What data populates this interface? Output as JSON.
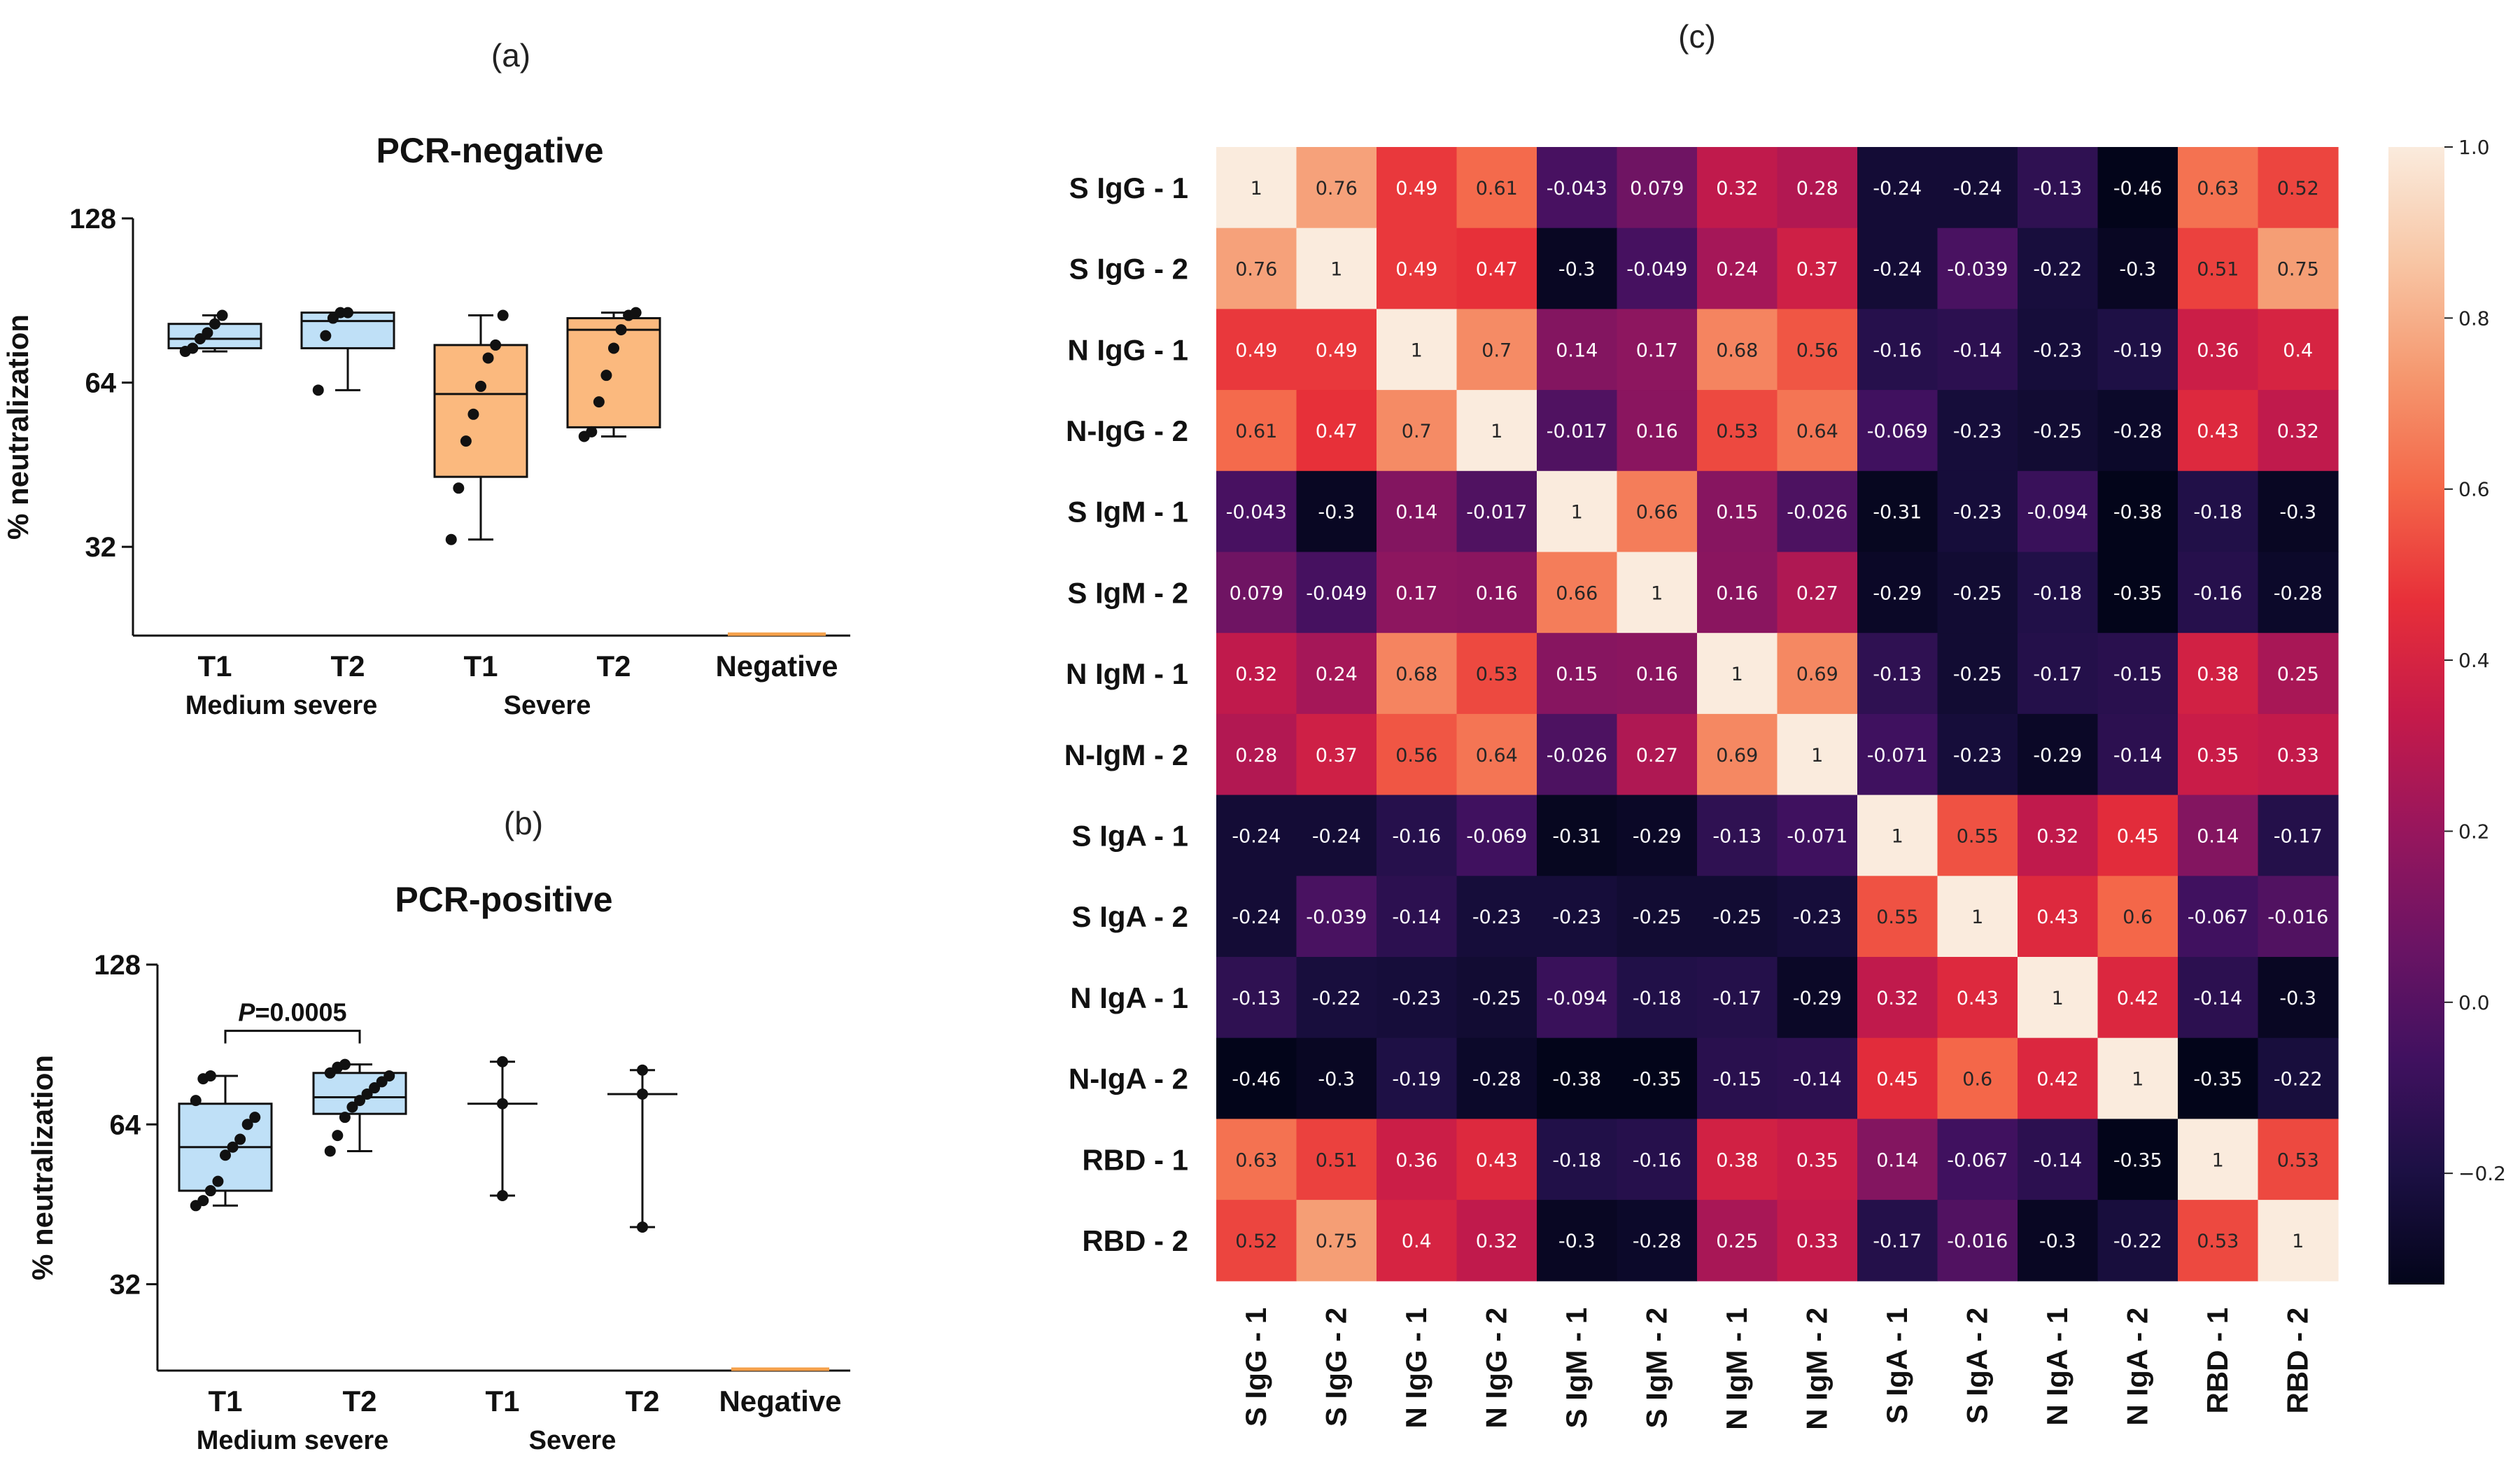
{
  "chart_data": [
    {
      "type": "box",
      "panel": "(a)",
      "title": "PCR-negative",
      "ylabel": "% neutralization",
      "yscale": "log2",
      "ylim": [
        22,
        128
      ],
      "yticks": [
        32,
        64,
        128
      ],
      "ytick_labels": [
        "32",
        "64",
        "128"
      ],
      "categories": [
        "T1",
        "T2",
        "T1",
        "T2",
        "Negative"
      ],
      "groups": [
        {
          "name": "Medium severe",
          "span": [
            0,
            1
          ]
        },
        {
          "name": "Severe",
          "span": [
            2,
            3
          ]
        }
      ],
      "colors": [
        "#bfe0f7",
        "#bfe0f7",
        "#fbb97e",
        "#fbb97e",
        "#f5a04a"
      ],
      "boxes": [
        {
          "whisker_low": 73,
          "q1": 74,
          "median": 77,
          "q3": 82,
          "whisker_high": 85,
          "points": [
            73,
            74,
            77,
            79,
            82,
            85
          ]
        },
        {
          "whisker_low": 62,
          "q1": 74,
          "median": 83,
          "q3": 86,
          "whisker_high": 86,
          "points": [
            62,
            78,
            84,
            86,
            86
          ]
        },
        {
          "whisker_low": 33,
          "q1": 43,
          "median": 61,
          "q3": 75,
          "whisker_high": 85,
          "points": [
            33,
            41,
            50,
            56,
            63,
            71,
            75,
            85
          ]
        },
        {
          "whisker_low": 51,
          "q1": 53,
          "median": 80,
          "q3": 84,
          "whisker_high": 86,
          "points": [
            51,
            52,
            59,
            66,
            74,
            80,
            85,
            86
          ]
        },
        {
          "whisker_low": 22,
          "q1": 22,
          "median": 22,
          "q3": 22,
          "whisker_high": 22,
          "points": []
        }
      ]
    },
    {
      "type": "box",
      "panel": "(b)",
      "title": "PCR-positive",
      "ylabel": "% neutralization",
      "yscale": "log2",
      "ylim": [
        22,
        128
      ],
      "yticks": [
        32,
        64,
        128
      ],
      "ytick_labels": [
        "32",
        "64",
        "128"
      ],
      "categories": [
        "T1",
        "T2",
        "T1",
        "T2",
        "Negative"
      ],
      "groups": [
        {
          "name": "Medium severe",
          "span": [
            0,
            1
          ]
        },
        {
          "name": "Severe",
          "span": [
            2,
            3
          ]
        }
      ],
      "colors": [
        "#bfe0f7",
        "#bfe0f7",
        "#ffffff",
        "#ffffff",
        "#f5a04a"
      ],
      "annotation": {
        "label_italic": "P",
        "label_rest": "=0.0005",
        "between": [
          0,
          1
        ]
      },
      "boxes": [
        {
          "whisker_low": 45,
          "q1": 48,
          "median": 58,
          "q3": 70,
          "whisker_high": 79,
          "points": [
            45,
            46,
            48,
            50,
            56,
            58,
            60,
            64,
            66,
            71,
            78,
            79
          ]
        },
        {
          "whisker_low": 57,
          "q1": 67,
          "median": 72,
          "q3": 80,
          "whisker_high": 83,
          "points": [
            57,
            61,
            66,
            69,
            71,
            73,
            75,
            77,
            79,
            80,
            82,
            83
          ]
        },
        {
          "whisker_low": 47,
          "q1": null,
          "median": 70,
          "q3": null,
          "whisker_high": 84,
          "points": [
            47,
            70,
            84
          ]
        },
        {
          "whisker_low": 41,
          "q1": null,
          "median": 73,
          "q3": null,
          "whisker_high": 81,
          "points": [
            41,
            73,
            81
          ]
        },
        {
          "whisker_low": 22,
          "q1": 22,
          "median": 22,
          "q3": 22,
          "whisker_high": 22,
          "points": []
        }
      ]
    },
    {
      "type": "heatmap",
      "panel": "(c)",
      "row_labels": [
        "S IgG - 1",
        "S IgG - 2",
        "N IgG - 1",
        "N-IgG - 2",
        "S IgM - 1",
        "S IgM - 2",
        "N IgM - 1",
        "N-IgM - 2",
        "S IgA - 1",
        "S  IgA - 2",
        "N IgA - 1",
        "N-IgA - 2",
        "RBD - 1",
        "RBD - 2"
      ],
      "col_labels": [
        "S IgG - 1",
        "S IgG - 2",
        "N IgG - 1",
        "N IgG - 2",
        "S IgM - 1",
        "S IgM - 2",
        "N IgM - 1",
        "N IgM - 2",
        "S IgA - 1",
        "S IgA - 2",
        "N IgA - 1",
        "N IgA - 2",
        "RBD - 1",
        "RBD - 2"
      ],
      "values": [
        [
          "1",
          "0.76",
          "0.49",
          "0.61",
          "-0.043",
          "0.079",
          "0.32",
          "0.28",
          "-0.24",
          "-0.24",
          "-0.13",
          "-0.46",
          "0.63",
          "0.52"
        ],
        [
          "0.76",
          "1",
          "0.49",
          "0.47",
          "-0.3",
          "-0.049",
          "0.24",
          "0.37",
          "-0.24",
          "-0.039",
          "-0.22",
          "-0.3",
          "0.51",
          "0.75"
        ],
        [
          "0.49",
          "0.49",
          "1",
          "0.7",
          "0.14",
          "0.17",
          "0.68",
          "0.56",
          "-0.16",
          "-0.14",
          "-0.23",
          "-0.19",
          "0.36",
          "0.4"
        ],
        [
          "0.61",
          "0.47",
          "0.7",
          "1",
          "-0.017",
          "0.16",
          "0.53",
          "0.64",
          "-0.069",
          "-0.23",
          "-0.25",
          "-0.28",
          "0.43",
          "0.32"
        ],
        [
          "-0.043",
          "-0.3",
          "0.14",
          "-0.017",
          "1",
          "0.66",
          "0.15",
          "-0.026",
          "-0.31",
          "-0.23",
          "-0.094",
          "-0.38",
          "-0.18",
          "-0.3"
        ],
        [
          "0.079",
          "-0.049",
          "0.17",
          "0.16",
          "0.66",
          "1",
          "0.16",
          "0.27",
          "-0.29",
          "-0.25",
          "-0.18",
          "-0.35",
          "-0.16",
          "-0.28"
        ],
        [
          "0.32",
          "0.24",
          "0.68",
          "0.53",
          "0.15",
          "0.16",
          "1",
          "0.69",
          "-0.13",
          "-0.25",
          "-0.17",
          "-0.15",
          "0.38",
          "0.25"
        ],
        [
          "0.28",
          "0.37",
          "0.56",
          "0.64",
          "-0.026",
          "0.27",
          "0.69",
          "1",
          "-0.071",
          "-0.23",
          "-0.29",
          "-0.14",
          "0.35",
          "0.33"
        ],
        [
          "-0.24",
          "-0.24",
          "-0.16",
          "-0.069",
          "-0.31",
          "-0.29",
          "-0.13",
          "-0.071",
          "1",
          "0.55",
          "0.32",
          "0.45",
          "0.14",
          "-0.17"
        ],
        [
          "-0.24",
          "-0.039",
          "-0.14",
          "-0.23",
          "-0.23",
          "-0.25",
          "-0.25",
          "-0.23",
          "0.55",
          "1",
          "0.43",
          "0.6",
          "-0.067",
          "-0.016"
        ],
        [
          "-0.13",
          "-0.22",
          "-0.23",
          "-0.25",
          "-0.094",
          "-0.18",
          "-0.17",
          "-0.29",
          "0.32",
          "0.43",
          "1",
          "0.42",
          "-0.14",
          "-0.3"
        ],
        [
          "-0.46",
          "-0.3",
          "-0.19",
          "-0.28",
          "-0.38",
          "-0.35",
          "-0.15",
          "-0.14",
          "0.45",
          "0.6",
          "0.42",
          "1",
          "-0.35",
          "-0.22"
        ],
        [
          "0.63",
          "0.51",
          "0.36",
          "0.43",
          "-0.18",
          "-0.16",
          "0.38",
          "0.35",
          "0.14",
          "-0.067",
          "-0.14",
          "-0.35",
          "1",
          "0.53"
        ],
        [
          "0.52",
          "0.75",
          "0.4",
          "0.32",
          "-0.3",
          "-0.28",
          "0.25",
          "0.33",
          "-0.17",
          "-0.016",
          "-0.3",
          "-0.22",
          "0.53",
          "1"
        ]
      ],
      "colorbar": {
        "vmin": -0.33,
        "vmax": 1.0,
        "colormap": "rocket",
        "ticks": [
          1.0,
          0.8,
          0.6,
          0.4,
          0.2,
          0.0,
          -0.2
        ],
        "tick_labels": [
          "1.0",
          "0.8",
          "0.6",
          "0.4",
          "0.2",
          "0.0",
          "−0.2"
        ]
      }
    }
  ]
}
